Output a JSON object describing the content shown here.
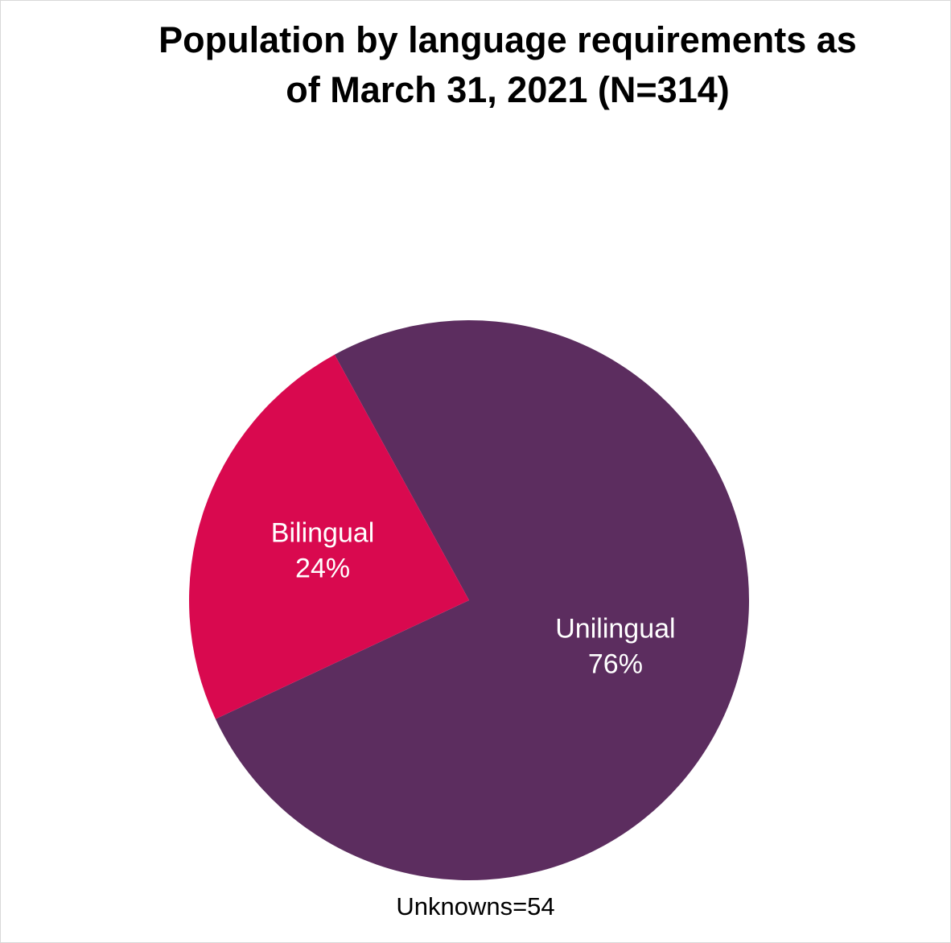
{
  "chart_data": {
    "type": "pie",
    "title": "Population by language requirements as of March 31, 2021 (N=314)",
    "categories": [
      "Unilingual",
      "Bilingual"
    ],
    "values": [
      76,
      24
    ],
    "value_labels": [
      "76%",
      "24%"
    ],
    "colors": [
      "#5c2d5f",
      "#d9094f"
    ],
    "annotation": "Unknowns=54"
  }
}
